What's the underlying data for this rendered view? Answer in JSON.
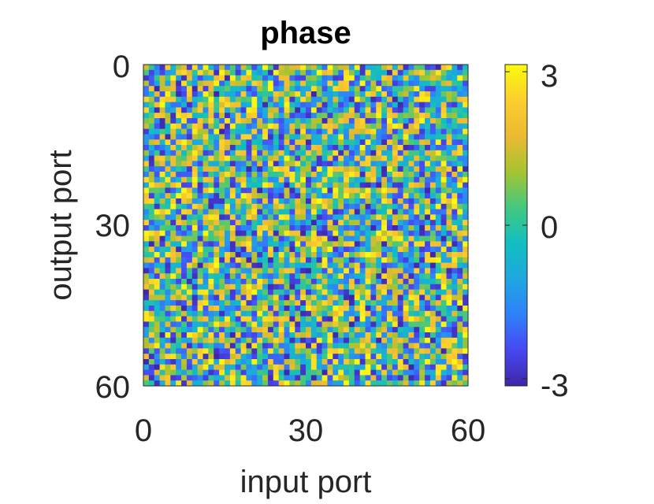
{
  "chart_data": {
    "type": "heatmap",
    "title": "phase",
    "xlabel": "input port",
    "ylabel": "output port",
    "x_ticks": [
      "0",
      "30",
      "60"
    ],
    "y_ticks": [
      "0",
      "30",
      "60"
    ],
    "xlim": [
      0,
      60
    ],
    "ylim": [
      0,
      60
    ],
    "rows": 60,
    "cols": 60,
    "y_axis_direction": "reversed",
    "colormap": "parula",
    "colormap_stops": [
      "#3e26a8",
      "#4748f2",
      "#2f80fa",
      "#1ea8df",
      "#12bec1",
      "#44c87f",
      "#a6c431",
      "#ecb932",
      "#fcce2e",
      "#f9fb0e"
    ],
    "colorbar": {
      "range": [
        -3.14,
        3.14
      ],
      "ticks": [
        "3",
        "0",
        "-3"
      ],
      "tick_values": [
        3,
        0,
        -3
      ],
      "position": "right"
    },
    "values_note": "pseudo-random phase values in [-pi, pi]",
    "seed": 17
  }
}
